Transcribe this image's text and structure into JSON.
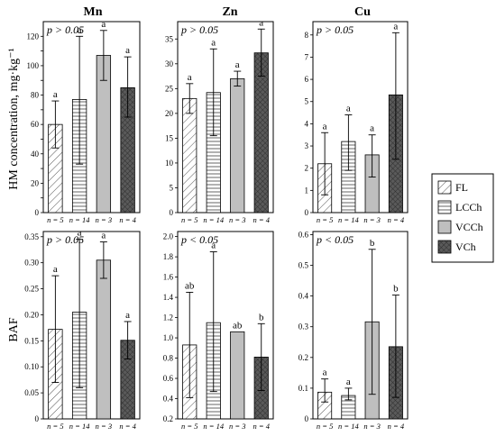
{
  "chart_data": [
    {
      "type": "bar",
      "panel_title": "Mn",
      "ylabel": "HM concentration, mg·kg⁻¹",
      "xlabel": "",
      "p_text": "p > 0.05",
      "categories": [
        "FL",
        "LCCh",
        "VCCh",
        "VCh"
      ],
      "n_labels": [
        "n = 5",
        "n = 14",
        "n = 3",
        "n = 4"
      ],
      "values": [
        60,
        77,
        107,
        85
      ],
      "error_low": [
        44,
        33,
        90,
        65
      ],
      "error_high": [
        76,
        120,
        124,
        106
      ],
      "letters": [
        "a",
        "a",
        "a",
        "a"
      ],
      "ylim": [
        0,
        130
      ],
      "yticks": [
        0,
        10,
        20,
        30,
        40,
        50,
        60,
        70,
        80,
        90,
        100,
        110,
        120
      ],
      "ytick_labels": [
        "0",
        "",
        "20",
        "",
        "40",
        "",
        "60",
        "",
        "80",
        "",
        "100",
        "",
        "120"
      ],
      "grid": false
    },
    {
      "type": "bar",
      "panel_title": "Zn",
      "ylabel": "",
      "xlabel": "",
      "p_text": "p > 0.05",
      "categories": [
        "FL",
        "LCCh",
        "VCCh",
        "VCh"
      ],
      "n_labels": [
        "n = 5",
        "n = 14",
        "n = 3",
        "n = 4"
      ],
      "values": [
        23,
        24.2,
        27,
        32.2
      ],
      "error_low": [
        20,
        15.5,
        25.5,
        27.5
      ],
      "error_high": [
        26,
        33,
        28.5,
        37
      ],
      "letters": [
        "a",
        "a",
        "a",
        "a"
      ],
      "ylim": [
        0,
        38.5
      ],
      "yticks": [
        0,
        5,
        10,
        15,
        20,
        25,
        30,
        35
      ],
      "ytick_labels": [
        "0",
        "5",
        "10",
        "15",
        "20",
        "25",
        "30",
        "35"
      ],
      "grid": false
    },
    {
      "type": "bar",
      "panel_title": "Cu",
      "ylabel": "",
      "xlabel": "",
      "p_text": "p > 0.05",
      "categories": [
        "FL",
        "LCCh",
        "VCCh",
        "VCh"
      ],
      "n_labels": [
        "n = 5",
        "n = 14",
        "n = 3",
        "n = 4"
      ],
      "values": [
        2.2,
        3.2,
        2.6,
        5.3
      ],
      "error_low": [
        0.8,
        1.9,
        1.6,
        2.4
      ],
      "error_high": [
        3.6,
        4.4,
        3.5,
        8.1
      ],
      "letters": [
        "a",
        "a",
        "a",
        "a"
      ],
      "ylim": [
        0,
        8.6
      ],
      "yticks": [
        0,
        1,
        2,
        3,
        4,
        5,
        6,
        7,
        8
      ],
      "ytick_labels": [
        "0",
        "1",
        "2",
        "3",
        "4",
        "5",
        "6",
        "7",
        "8"
      ],
      "grid": false
    },
    {
      "type": "bar",
      "panel_title": "",
      "ylabel": "BAF",
      "xlabel": "",
      "p_text": "p > 0.05",
      "categories": [
        "FL",
        "LCCh",
        "VCCh",
        "VCh"
      ],
      "n_labels": [
        "n = 5",
        "n = 14",
        "n = 3",
        "n = 4"
      ],
      "values": [
        0.172,
        0.205,
        0.305,
        0.151
      ],
      "error_low": [
        0.07,
        0.06,
        0.27,
        0.115
      ],
      "error_high": [
        0.275,
        0.345,
        0.34,
        0.187
      ],
      "letters": [
        "a",
        "a",
        "a",
        "a"
      ],
      "ylim": [
        0,
        0.36
      ],
      "yticks": [
        0,
        0.05,
        0.1,
        0.15,
        0.2,
        0.25,
        0.3,
        0.35
      ],
      "ytick_labels": [
        "0",
        "0.05",
        "0.10",
        "0.15",
        "0.20",
        "0.25",
        "0.30",
        "0.35"
      ],
      "grid": false
    },
    {
      "type": "bar",
      "panel_title": "",
      "ylabel": "",
      "xlabel": "",
      "p_text": "p < 0.05",
      "categories": [
        "FL",
        "LCCh",
        "VCCh",
        "VCh"
      ],
      "n_labels": [
        "n = 5",
        "n = 14",
        "n = 3",
        "n = 4"
      ],
      "values": [
        0.93,
        1.15,
        1.06,
        0.81
      ],
      "error_low": [
        0.41,
        0.47,
        1.06,
        0.48
      ],
      "error_high": [
        1.45,
        1.85,
        1.06,
        1.14
      ],
      "letters": [
        "ab",
        "a",
        "ab",
        "b"
      ],
      "ylim": [
        0.2,
        2.05
      ],
      "yticks": [
        0.2,
        0.4,
        0.6,
        0.8,
        1.0,
        1.2,
        1.4,
        1.6,
        1.8,
        2.0
      ],
      "ytick_labels": [
        "0.2",
        "0.4",
        "0.6",
        "0.8",
        "1.0",
        "1.2",
        "1.4",
        "1.6",
        "1.8",
        "2.0"
      ],
      "grid": false
    },
    {
      "type": "bar",
      "panel_title": "",
      "ylabel": "",
      "xlabel": "",
      "p_text": "p < 0.05",
      "categories": [
        "FL",
        "LCCh",
        "VCCh",
        "VCh"
      ],
      "n_labels": [
        "n = 5",
        "n = 14",
        "n = 3",
        "n = 4"
      ],
      "values": [
        0.087,
        0.076,
        0.316,
        0.235
      ],
      "error_low": [
        0.055,
        0.062,
        0.08,
        0.07
      ],
      "error_high": [
        0.13,
        0.1,
        0.552,
        0.403
      ],
      "letters": [
        "a",
        "a",
        "b",
        "b"
      ],
      "ylim": [
        0,
        0.61
      ],
      "yticks": [
        0,
        0.1,
        0.2,
        0.3,
        0.4,
        0.5,
        0.6
      ],
      "ytick_labels": [
        "0",
        "0.1",
        "0.2",
        "0.3",
        "0.4",
        "0.5",
        "0.6"
      ],
      "grid": false
    }
  ],
  "legend": {
    "placement": "right",
    "items": [
      {
        "label": "FL",
        "pattern": "diagonal-hatch"
      },
      {
        "label": "LCCh",
        "pattern": "horizontal-lines"
      },
      {
        "label": "VCCh",
        "pattern": "solid-gray"
      },
      {
        "label": "VCh",
        "pattern": "crosshatch-dark"
      }
    ]
  },
  "colors": {
    "vcch_fill": "#bfbfbf",
    "vch_fill": "#555555",
    "axis": "#000000"
  }
}
